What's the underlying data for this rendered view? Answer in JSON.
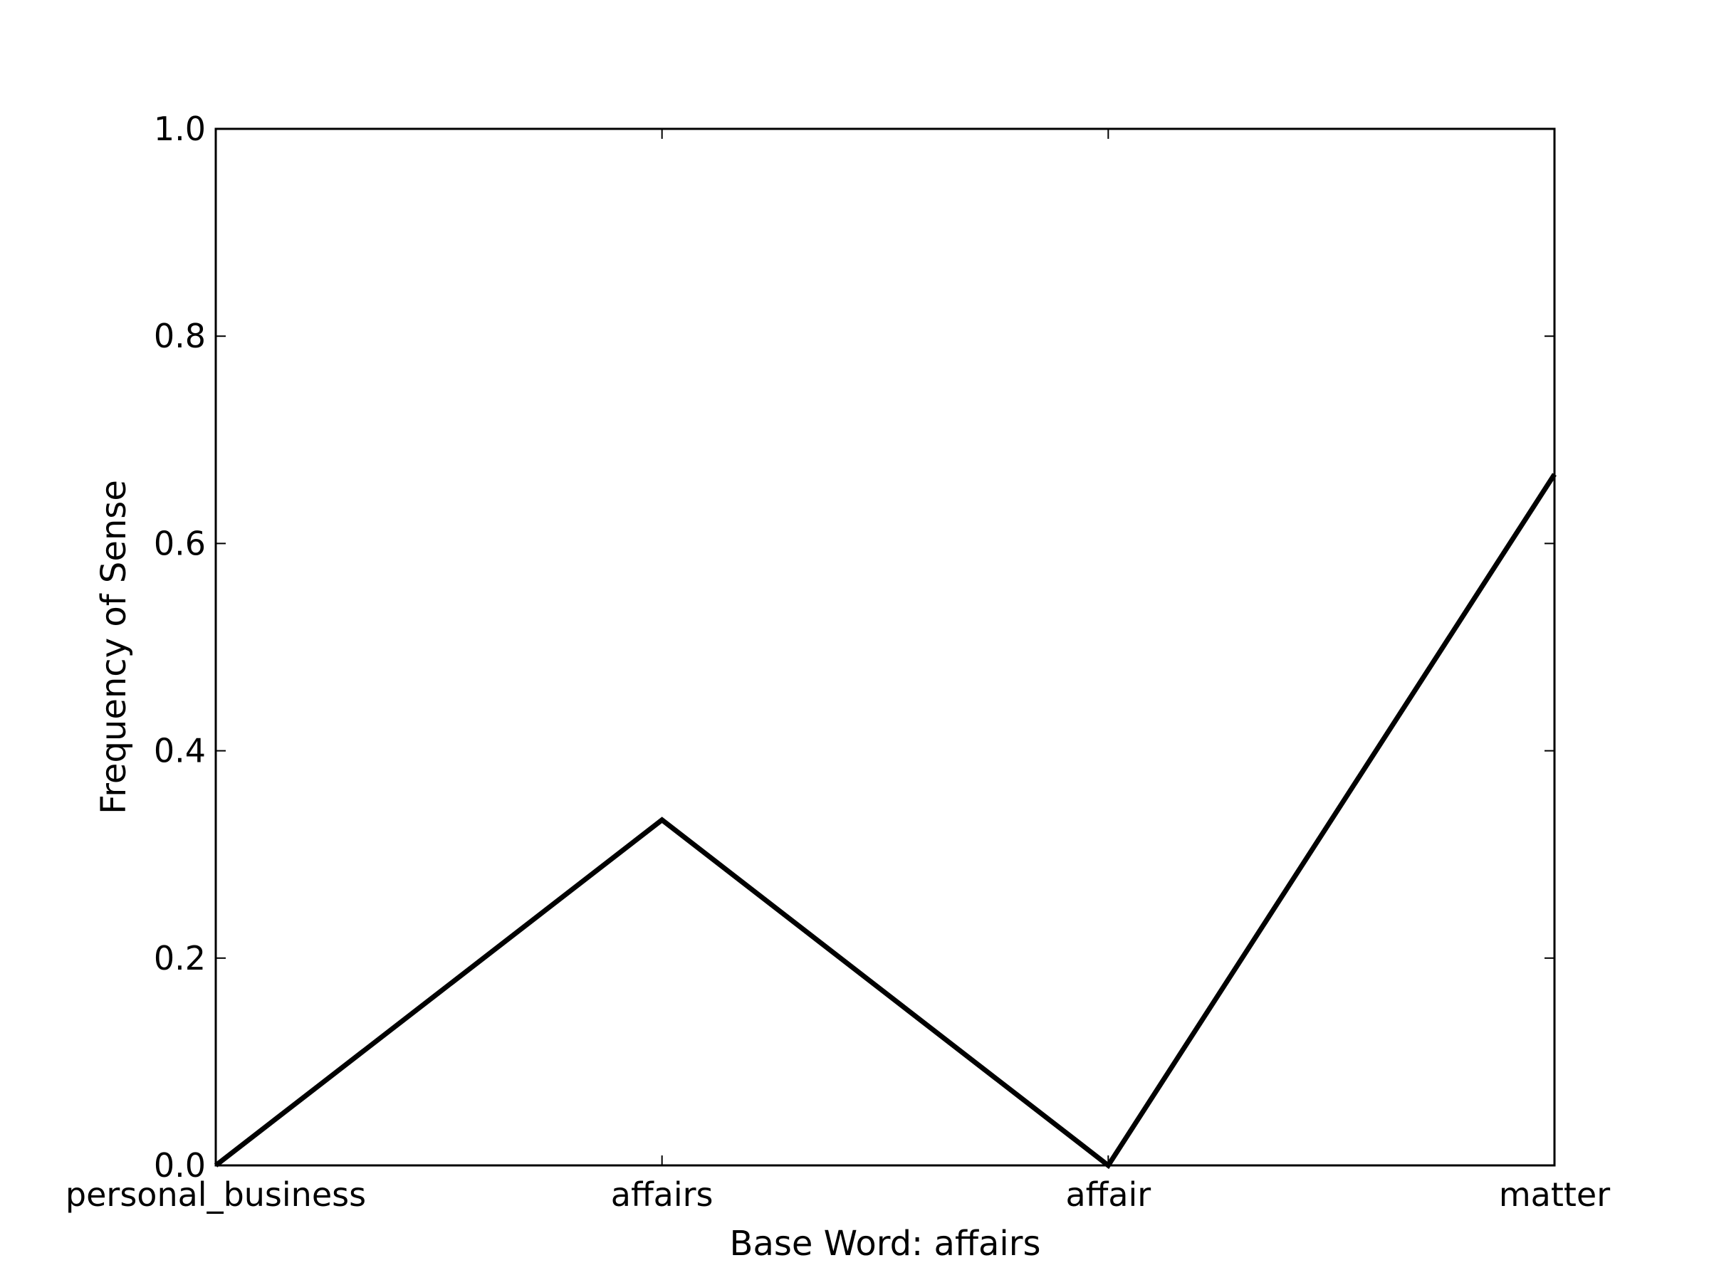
{
  "chart_data": {
    "type": "line",
    "categories": [
      "personal_business",
      "affairs",
      "affair",
      "matter"
    ],
    "series": [
      {
        "values": [
          0.0,
          0.3333,
          0.0,
          0.6667
        ],
        "color": "#000000"
      }
    ],
    "xlabel": "Base Word: affairs",
    "ylabel": "Frequency of Sense",
    "ylim": [
      0.0,
      1.0
    ],
    "yticks": [
      0.0,
      0.2,
      0.4,
      0.6,
      0.8,
      1.0
    ],
    "ytick_labels": [
      "0.0",
      "0.2",
      "0.4",
      "0.6",
      "0.8",
      "1.0"
    ],
    "grid": false,
    "legend": "none"
  }
}
